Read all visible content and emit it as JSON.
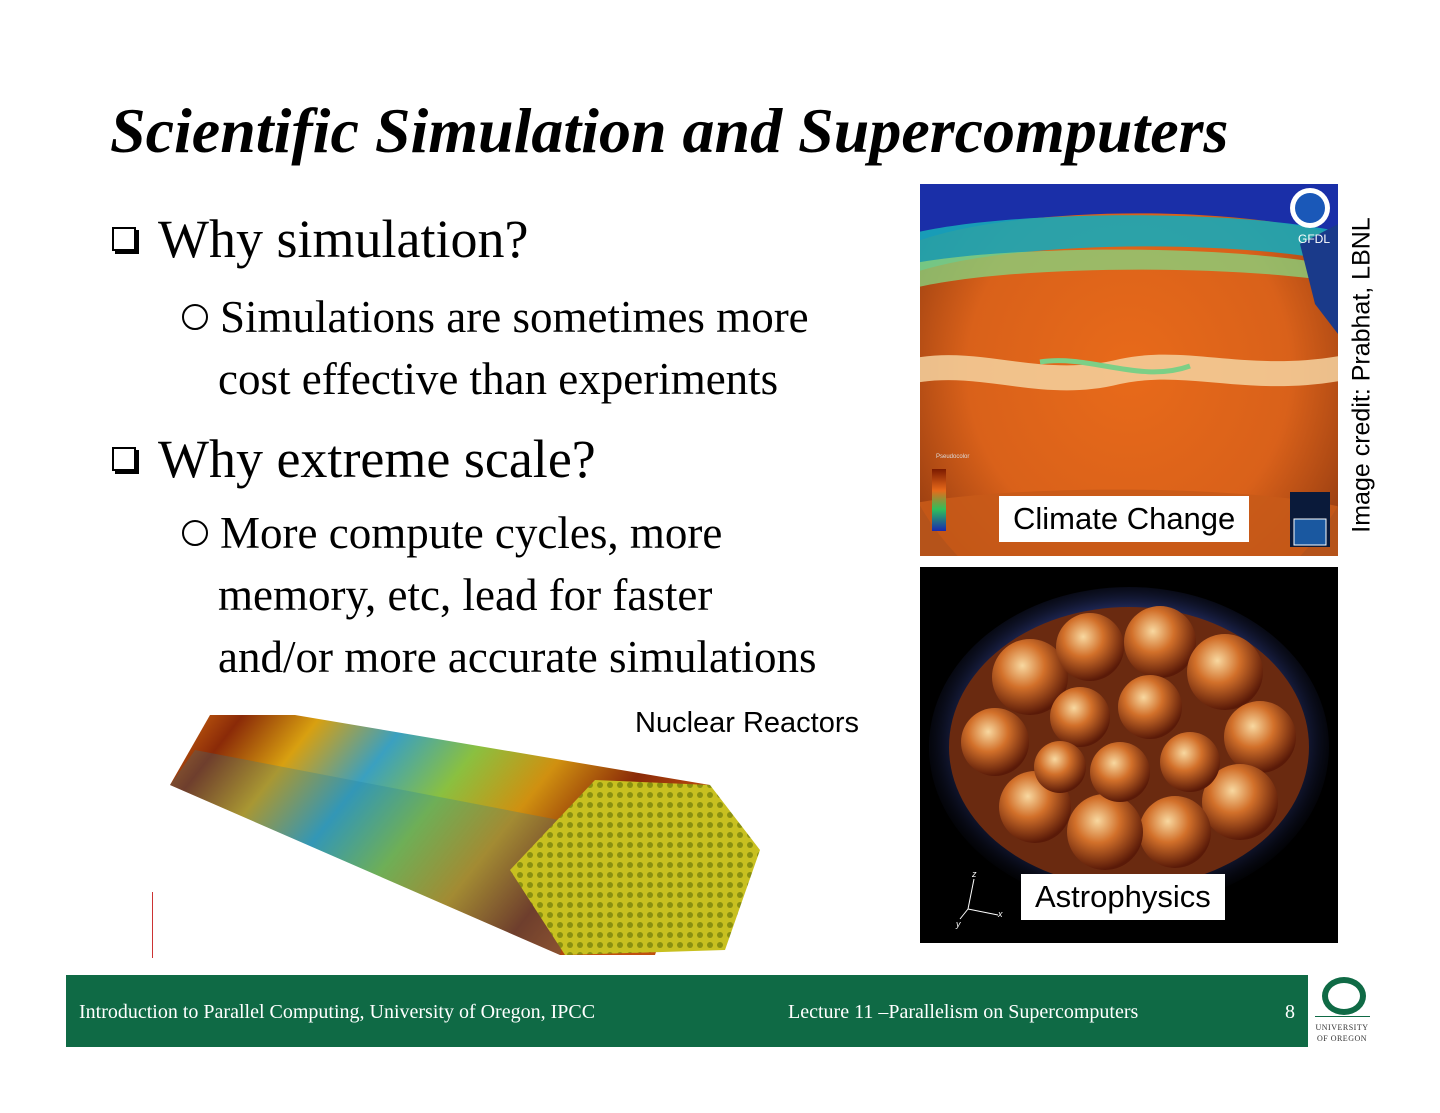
{
  "slide": {
    "title": "Scientific Simulation and Supercomputers",
    "bullets": [
      {
        "text": "Why simulation?",
        "sub": {
          "line1": "Simulations are sometimes more",
          "line2": "cost effective than experiments"
        }
      },
      {
        "text": "Why extreme scale?",
        "sub": {
          "line1": "More compute cycles, more",
          "line2": "memory, etc, lead for faster",
          "line3": "and/or more accurate simulations"
        }
      }
    ],
    "images": {
      "climate": {
        "caption": "Climate Change",
        "watermark": "GFDL",
        "legend_title": "Pseudocolor"
      },
      "astro": {
        "caption": "Astrophysics",
        "axes": [
          "z",
          "x",
          "y"
        ]
      },
      "nuclear": {
        "caption": "Nuclear Reactors"
      }
    },
    "credit": "Image credit: Prabhat, LBNL"
  },
  "footer": {
    "left": "Introduction to Parallel Computing, University of Oregon, IPCC",
    "middle": "Lecture 11 –Parallelism on Supercomputers",
    "page": "8"
  },
  "logo": {
    "line1": "UNIVERSITY",
    "line2": "OF OREGON"
  },
  "colors": {
    "footer_bg": "#0f6a45",
    "text": "#000000"
  }
}
